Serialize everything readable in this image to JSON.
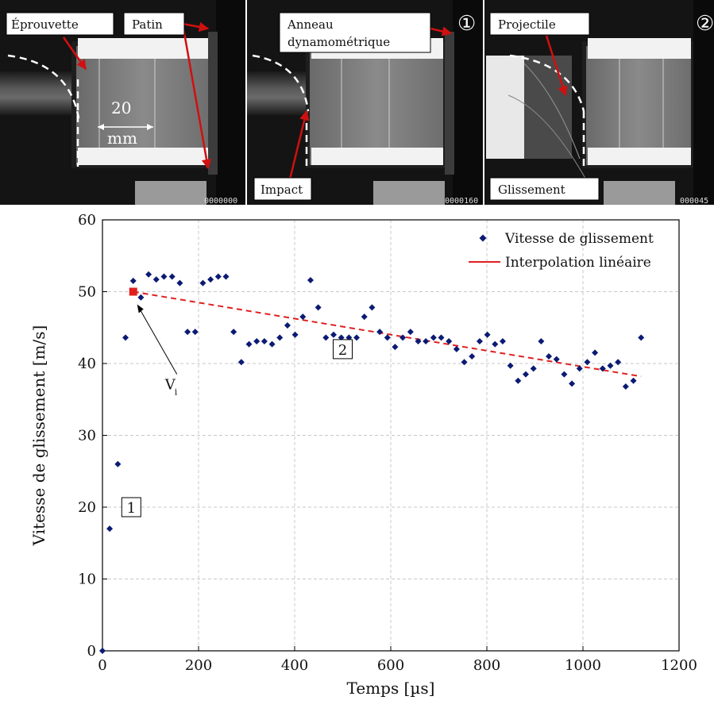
{
  "photos": {
    "panels": [
      {
        "labels": [
          "Éprouvette",
          "Patin"
        ],
        "scale_value": "20",
        "scale_unit": "mm",
        "frame_counter": "0000000"
      },
      {
        "labels": [
          "Anneau",
          "dynamométrique",
          "Impact"
        ],
        "step_marker": "①",
        "frame_counter": "0000160"
      },
      {
        "labels": [
          "Projectile",
          "Glissement"
        ],
        "step_marker": "②",
        "frame_counter": "000045"
      }
    ]
  },
  "chart_data": {
    "type": "scatter",
    "title": "",
    "xlabel": "Temps [µs]",
    "ylabel": "Vitesse de glissement [m/s]",
    "xlim": [
      0,
      1200
    ],
    "ylim": [
      0,
      60
    ],
    "x_ticks": [
      0,
      200,
      400,
      600,
      800,
      1000,
      1200
    ],
    "y_ticks": [
      0,
      10,
      20,
      30,
      40,
      50,
      60
    ],
    "grid": true,
    "legend_position": "top-right",
    "series": [
      {
        "name": "Vitesse de glissement",
        "marker": "diamond",
        "color": "#0b1a73",
        "points": [
          [
            0,
            0
          ],
          [
            15,
            17
          ],
          [
            32,
            26
          ],
          [
            48,
            43.6
          ],
          [
            64,
            51.5
          ],
          [
            80,
            49.2
          ],
          [
            96,
            52.4
          ],
          [
            112,
            51.7
          ],
          [
            128,
            52.1
          ],
          [
            145,
            52.1
          ],
          [
            161,
            51.2
          ],
          [
            177,
            44.4
          ],
          [
            193,
            44.4
          ],
          [
            209,
            51.2
          ],
          [
            225,
            51.7
          ],
          [
            241,
            52.1
          ],
          [
            257,
            52.1
          ],
          [
            273,
            44.4
          ],
          [
            289,
            40.2
          ],
          [
            305,
            42.7
          ],
          [
            321,
            43.1
          ],
          [
            337,
            43.1
          ],
          [
            353,
            42.7
          ],
          [
            369,
            43.6
          ],
          [
            385,
            45.3
          ],
          [
            401,
            44
          ],
          [
            417,
            46.5
          ],
          [
            433,
            51.6
          ],
          [
            449,
            47.8
          ],
          [
            465,
            43.6
          ],
          [
            481,
            44
          ],
          [
            497,
            43.6
          ],
          [
            513,
            43.6
          ],
          [
            529,
            43.6
          ],
          [
            545,
            46.5
          ],
          [
            561,
            47.8
          ],
          [
            577,
            44.4
          ],
          [
            593,
            43.6
          ],
          [
            609,
            42.3
          ],
          [
            625,
            43.6
          ],
          [
            641,
            44.4
          ],
          [
            657,
            43.1
          ],
          [
            673,
            43.1
          ],
          [
            689,
            43.6
          ],
          [
            705,
            43.6
          ],
          [
            721,
            43.1
          ],
          [
            737,
            42
          ],
          [
            753,
            40.2
          ],
          [
            769,
            41
          ],
          [
            785,
            43.1
          ],
          [
            801,
            44
          ],
          [
            817,
            42.7
          ],
          [
            833,
            43.1
          ],
          [
            849,
            39.7
          ],
          [
            865,
            37.6
          ],
          [
            881,
            38.5
          ],
          [
            897,
            39.3
          ],
          [
            913,
            43.1
          ],
          [
            929,
            41
          ],
          [
            945,
            40.6
          ],
          [
            961,
            38.5
          ],
          [
            977,
            37.2
          ],
          [
            993,
            39.3
          ],
          [
            1009,
            40.2
          ],
          [
            1025,
            41.5
          ],
          [
            1041,
            39.3
          ],
          [
            1057,
            39.7
          ],
          [
            1073,
            40.2
          ],
          [
            1089,
            36.8
          ],
          [
            1105,
            37.6
          ],
          [
            1121,
            43.6
          ]
        ]
      },
      {
        "name": "Interpolation linéaire",
        "line_style": "dashed",
        "color": "#e02020",
        "points": [
          [
            64,
            50
          ],
          [
            1121,
            38.2
          ]
        ]
      }
    ],
    "annotations": [
      {
        "text": "V",
        "subscript": "i",
        "x": 64,
        "y": 50,
        "marker_color": "#e02020"
      },
      {
        "text": "1",
        "x": 60,
        "y": 20
      },
      {
        "text": "2",
        "x": 500,
        "y": 42
      }
    ]
  }
}
